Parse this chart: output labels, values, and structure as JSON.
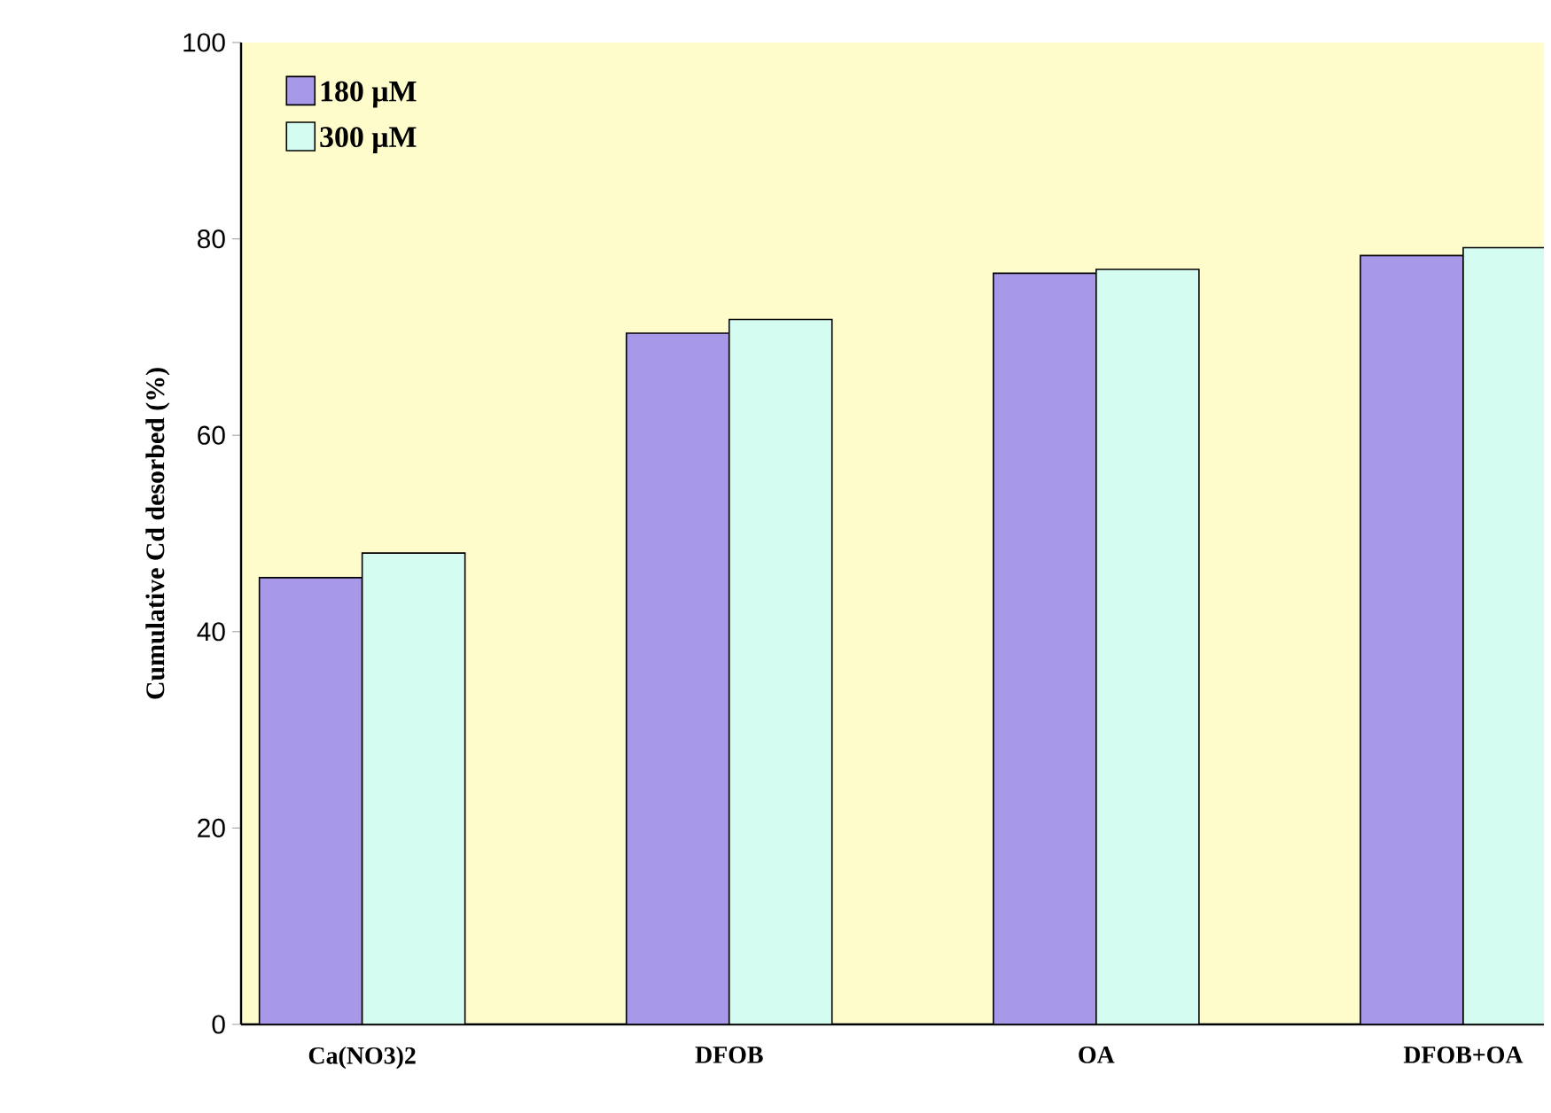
{
  "chart_data": {
    "type": "bar",
    "ylabel": "Cumulative Cd desorbed (%)",
    "categories": [
      "Ca(NO3)2",
      "DFOB",
      "OA",
      "DFOB+OA"
    ],
    "series": [
      {
        "name": "180 μM",
        "color": "#a899e8",
        "values": [
          45.5,
          70.4,
          76.5,
          78.3
        ]
      },
      {
        "name": "300 μM",
        "color": "#d4fcf0",
        "values": [
          48.0,
          71.8,
          76.9,
          79.1
        ]
      }
    ],
    "ylim": [
      0,
      100
    ],
    "yticks": [
      0,
      20,
      40,
      60,
      80,
      100
    ],
    "legend": "top left"
  }
}
